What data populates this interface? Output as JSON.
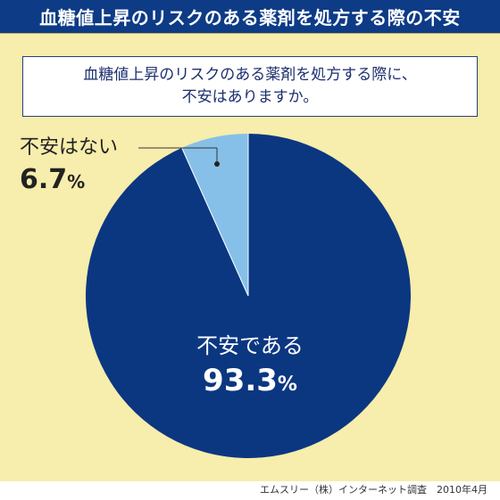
{
  "header": {
    "title": "血糖値上昇のリスクのある薬剤を処方する際の不安"
  },
  "question": {
    "line1": "血糖値上昇のリスクのある薬剤を処方する際に、",
    "line2": "不安はありますか。"
  },
  "chart_data": {
    "type": "pie",
    "title": "",
    "slices": [
      {
        "label": "不安である",
        "value": 93.3,
        "value_text": "93.3",
        "unit": "%",
        "color": "#0b3781",
        "label_color": "#ffffff"
      },
      {
        "label": "不安はない",
        "value": 6.7,
        "value_text": "6.7",
        "unit": "%",
        "color": "#86c0e9",
        "label_color": "#222222"
      }
    ],
    "start": "12 o'clock",
    "direction": "clockwise",
    "legend": "none"
  },
  "footer": {
    "source": "エムスリー（株）インターネット調査　2010年4月"
  }
}
